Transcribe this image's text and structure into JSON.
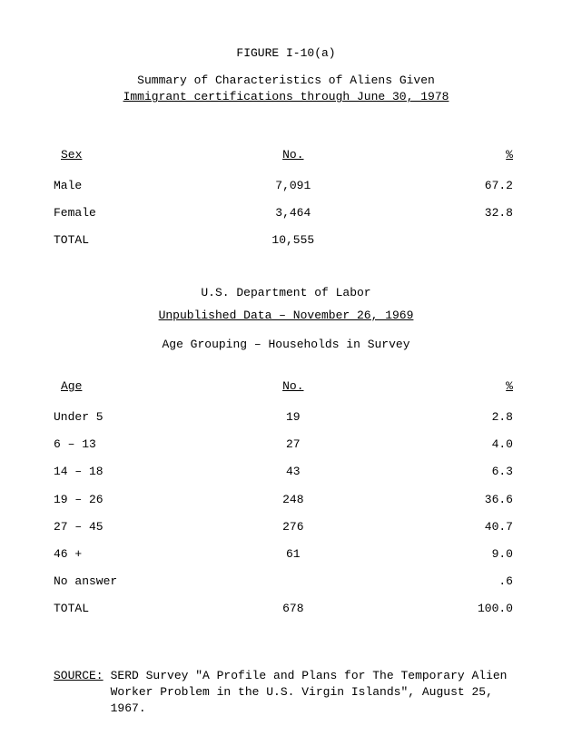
{
  "figure_title": "FIGURE I-10(a)",
  "subtitle_line1": "Summary of Characteristics of Aliens Given",
  "subtitle_line2": "Immigrant certifications through June 30, 1978",
  "table1": {
    "headers": {
      "c1": "Sex",
      "c2": "No.",
      "c3": "%"
    },
    "rows": [
      {
        "c1": "Male",
        "c2": "7,091",
        "c3": "67.2"
      },
      {
        "c1": "Female",
        "c2": "3,464",
        "c3": "32.8"
      },
      {
        "c1": "TOTAL",
        "c2": "10,555",
        "c3": ""
      }
    ]
  },
  "section2": {
    "heading": "U.S. Department of Labor",
    "subheading": "Unpublished Data – November 26, 1969",
    "caption": "Age Grouping – Households in Survey"
  },
  "table2": {
    "headers": {
      "c1": "Age",
      "c2": "No.",
      "c3": "%"
    },
    "rows": [
      {
        "c1": "Under 5",
        "c2": "19",
        "c3": "2.8"
      },
      {
        "c1": "6 – 13",
        "c2": "27",
        "c3": "4.0"
      },
      {
        "c1": "14 – 18",
        "c2": "43",
        "c3": "6.3"
      },
      {
        "c1": "19 – 26",
        "c2": "248",
        "c3": "36.6"
      },
      {
        "c1": "27 – 45",
        "c2": "276",
        "c3": "40.7"
      },
      {
        "c1": "46 +",
        "c2": "61",
        "c3": "9.0"
      },
      {
        "c1": "No answer",
        "c2": "",
        "c3": ".6"
      },
      {
        "c1": "TOTAL",
        "c2": "678",
        "c3": "100.0"
      }
    ]
  },
  "source": {
    "label": "SOURCE:",
    "text": "SERD Survey \"A Profile and Plans for The Temporary Alien Worker Problem in the U.S. Virgin Islands\", August 25, 1967."
  }
}
